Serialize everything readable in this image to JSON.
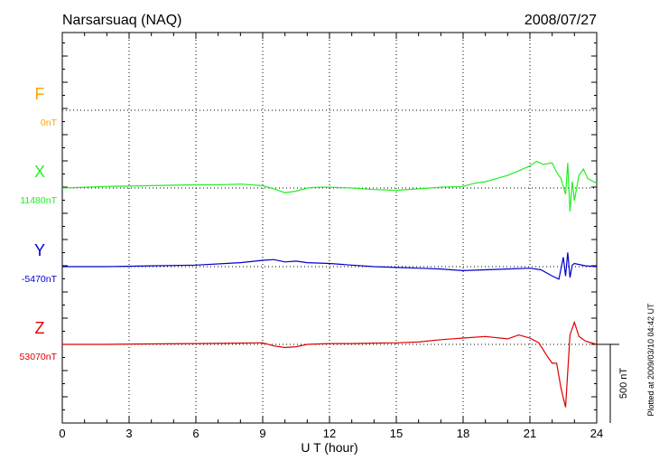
{
  "chart_data": {
    "type": "line",
    "title": "Narsarsuaq (NAQ)",
    "date": "2008/07/27",
    "xlabel": "U T (hour)",
    "xlim": [
      0,
      24
    ],
    "x_ticks": [
      "0",
      "3",
      "6",
      "9",
      "12",
      "15",
      "18",
      "21",
      "24"
    ],
    "grid": true,
    "scale_bar_label": "500 nT",
    "scale_bar_nT": 500,
    "plotted_note": "Plotted at 2009/03/10 04:42 UT",
    "colors": {
      "F": "#ffa500",
      "X": "#22ee22",
      "Y": "#0000cc",
      "Z": "#dd0000"
    },
    "series": [
      {
        "name": "F",
        "baseline_label": "0nT",
        "x": [],
        "offset_nT": []
      },
      {
        "name": "X",
        "baseline_label": "11480nT",
        "x": [
          0,
          1,
          2,
          3,
          4,
          5,
          6,
          7,
          8,
          9,
          9.5,
          10,
          10.5,
          11,
          11.5,
          12,
          13,
          14,
          15,
          16,
          17,
          18,
          18.5,
          19,
          19.5,
          20,
          20.5,
          21,
          21.3,
          21.6,
          22,
          22.2,
          22.4,
          22.6,
          22.7,
          22.8,
          22.9,
          23,
          23.2,
          23.4,
          23.6,
          24
        ],
        "offset_nT": [
          0,
          5,
          10,
          12,
          15,
          18,
          20,
          20,
          25,
          15,
          -5,
          -30,
          -20,
          0,
          5,
          5,
          0,
          -10,
          -15,
          -5,
          5,
          10,
          30,
          40,
          60,
          80,
          110,
          140,
          170,
          150,
          160,
          100,
          60,
          -40,
          160,
          -150,
          40,
          -80,
          80,
          120,
          60,
          30
        ]
      },
      {
        "name": "Y",
        "baseline_label": "-5470nT",
        "x": [
          0,
          2,
          4,
          6,
          8,
          9,
          9.5,
          10,
          10.5,
          11,
          12,
          13,
          14,
          15,
          16,
          17,
          18,
          19,
          20,
          21,
          21.5,
          22,
          22.3,
          22.5,
          22.6,
          22.7,
          22.8,
          22.9,
          23,
          23.5,
          24
        ],
        "offset_nT": [
          0,
          0,
          5,
          10,
          25,
          40,
          45,
          30,
          35,
          25,
          20,
          10,
          0,
          -5,
          -10,
          -15,
          -25,
          -20,
          -15,
          -10,
          -20,
          -60,
          -80,
          60,
          -60,
          90,
          -70,
          10,
          20,
          5,
          0
        ]
      },
      {
        "name": "Z",
        "baseline_label": "53070nT",
        "x": [
          0,
          2,
          4,
          6,
          8,
          9,
          9.5,
          10,
          10.5,
          11,
          12,
          13,
          14,
          15,
          16,
          17,
          18,
          19,
          20,
          20.5,
          21,
          21.4,
          21.8,
          22,
          22.2,
          22.4,
          22.6,
          22.8,
          23,
          23.2,
          23.5,
          24
        ],
        "offset_nT": [
          0,
          0,
          3,
          5,
          8,
          10,
          -10,
          -20,
          -15,
          0,
          5,
          5,
          8,
          10,
          15,
          30,
          40,
          50,
          35,
          60,
          40,
          10,
          -80,
          -120,
          -120,
          -280,
          -400,
          60,
          140,
          50,
          20,
          0
        ]
      }
    ]
  }
}
